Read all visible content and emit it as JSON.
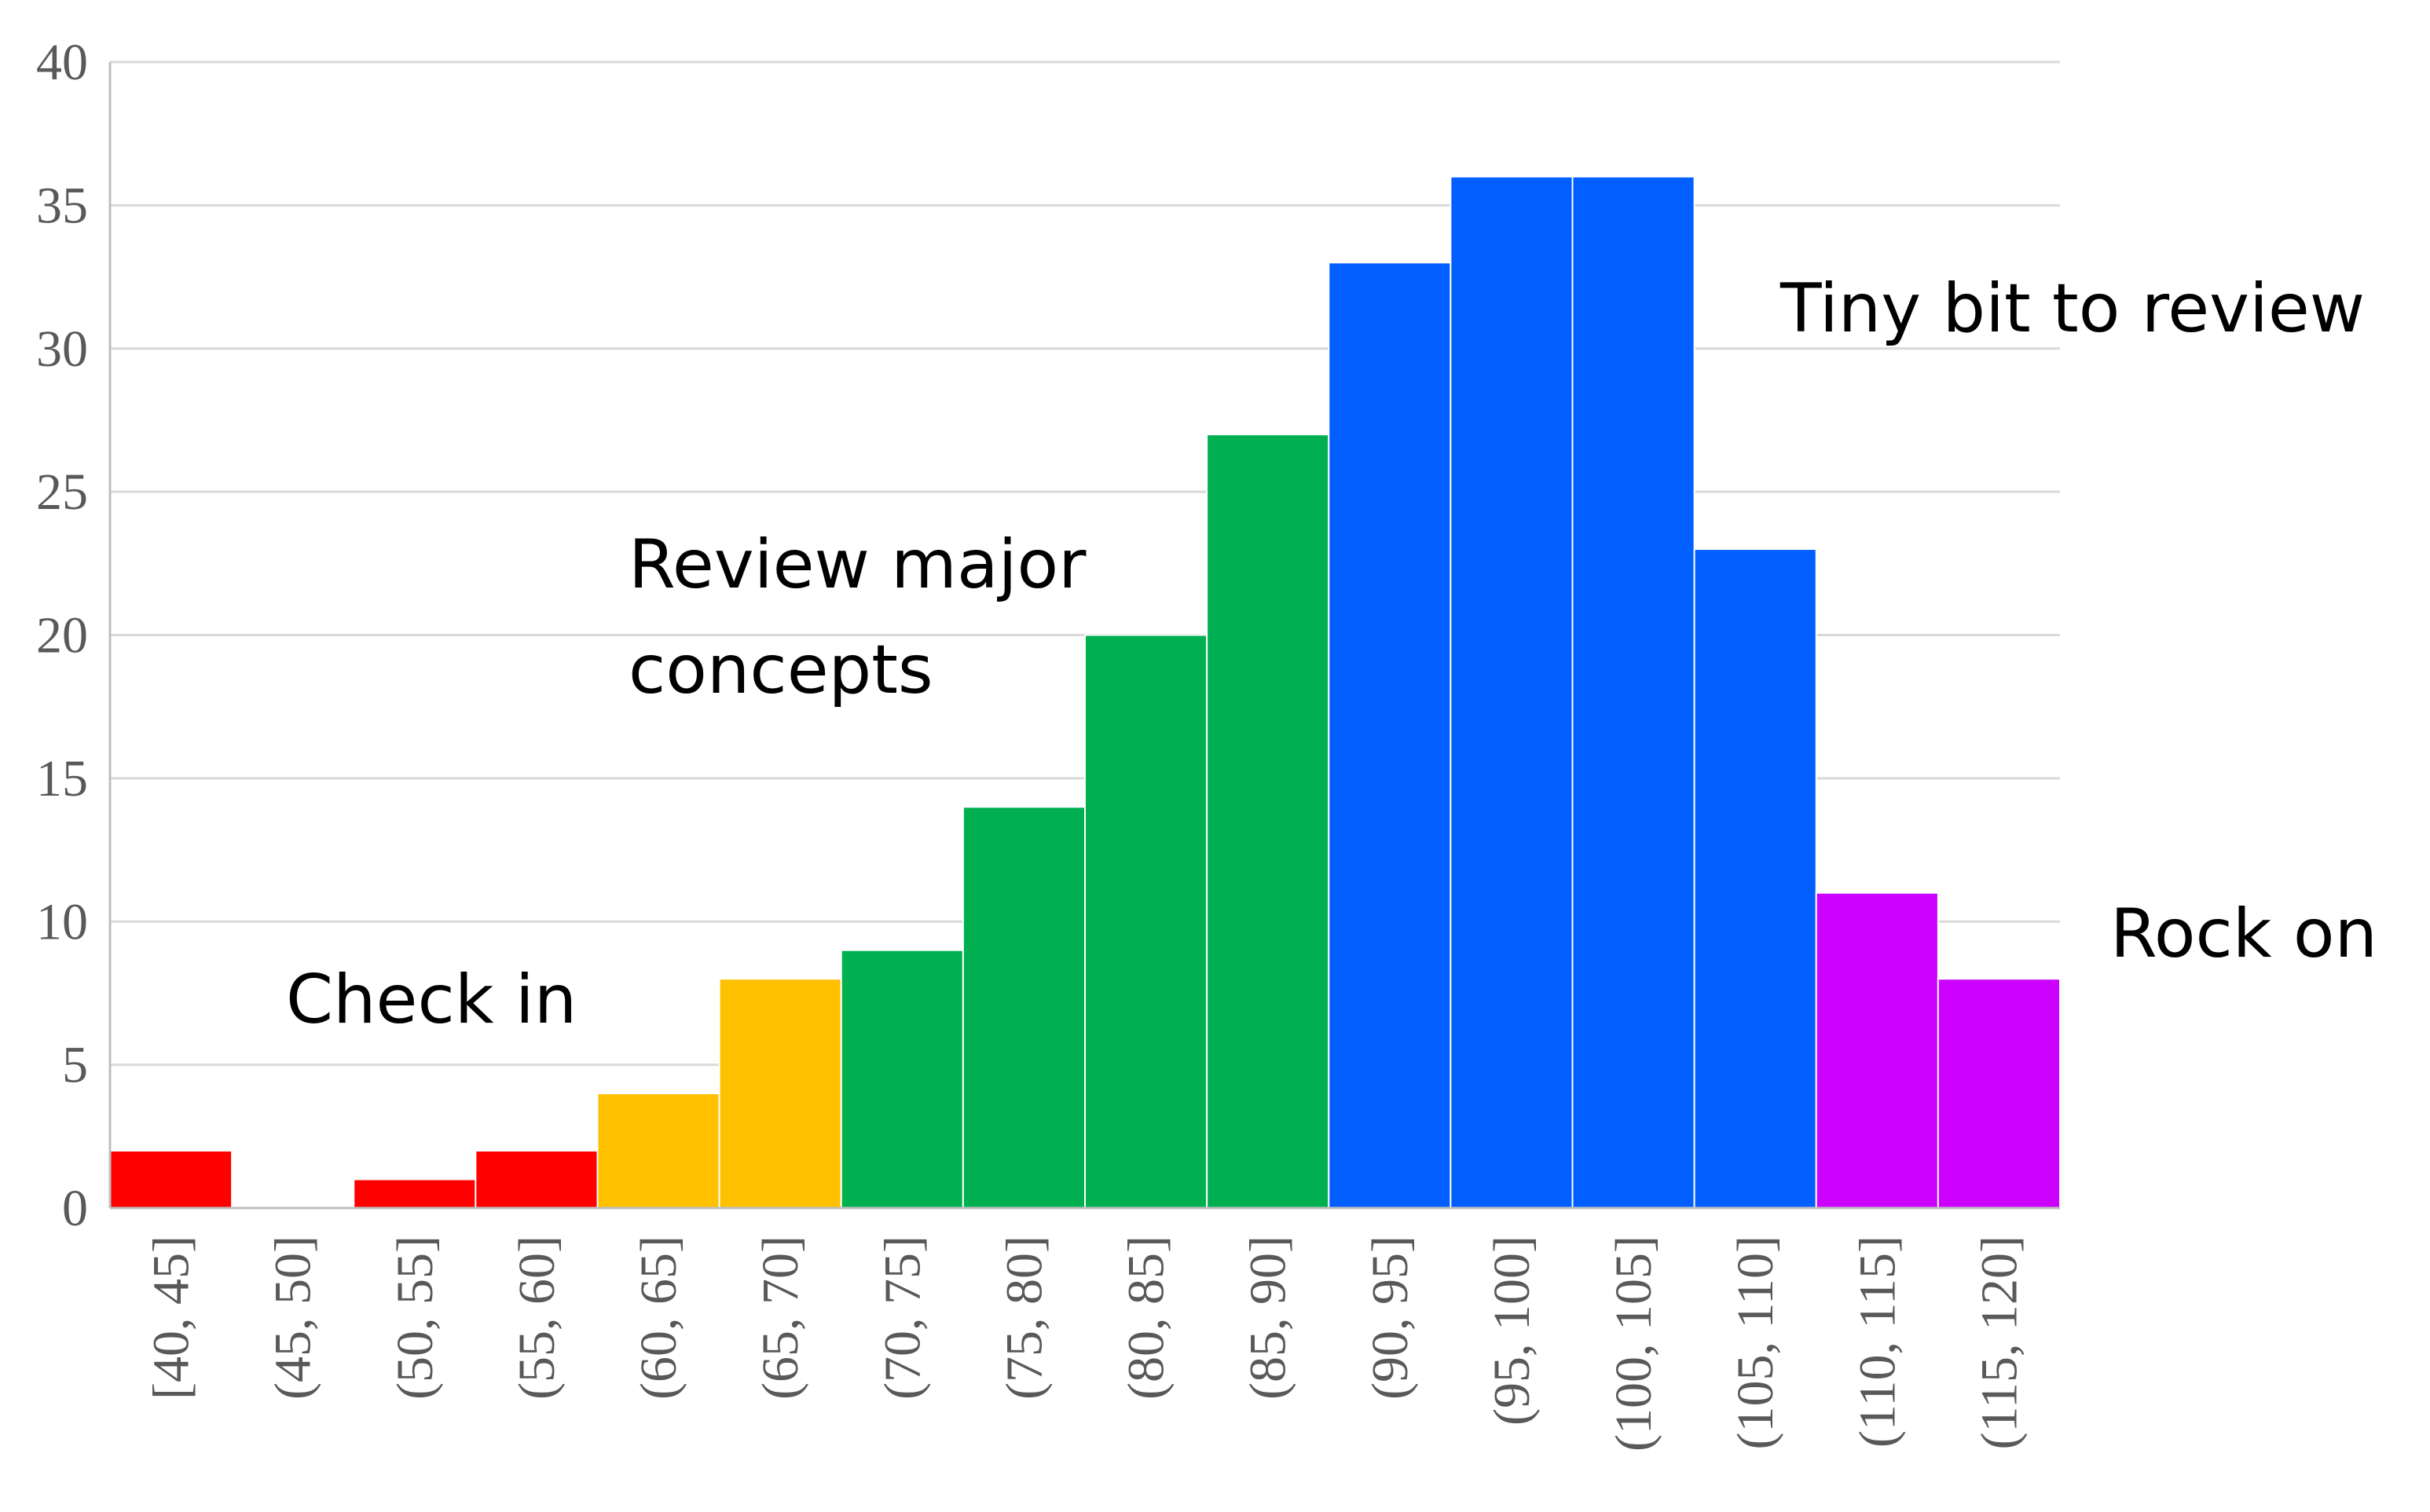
{
  "chart_data": {
    "type": "bar",
    "title": "",
    "xlabel": "",
    "ylabel": "",
    "categories": [
      "[40, 45]",
      "(45, 50]",
      "(50, 55]",
      "(55, 60]",
      "(60, 65]",
      "(65, 70]",
      "(70, 75]",
      "(75, 80]",
      "(80, 85]",
      "(85, 90]",
      "(90, 95]",
      "(95, 100]",
      "(100, 105]",
      "(105, 110]",
      "(110, 115]",
      "(115, 120]"
    ],
    "values": [
      2,
      0,
      1,
      2,
      4,
      8,
      9,
      14,
      20,
      27,
      33,
      36,
      36,
      23,
      11,
      8
    ],
    "bar_colors": [
      "#ff0000",
      "#ff0000",
      "#ff0000",
      "#ff0000",
      "#ffc000",
      "#ffc000",
      "#00b050",
      "#00b050",
      "#00b050",
      "#00b050",
      "#005ffe",
      "#005ffe",
      "#005ffe",
      "#005ffe",
      "#cc00ff",
      "#cc00ff"
    ],
    "ylim": [
      0,
      40
    ],
    "yticks": [
      0,
      5,
      10,
      15,
      20,
      25,
      30,
      35,
      40
    ],
    "grid": true,
    "legend": "none",
    "annotations": [
      {
        "lines": [
          "Check in"
        ]
      },
      {
        "lines": [
          "Review major",
          "concepts"
        ]
      },
      {
        "lines": [
          "Tiny bit to review"
        ]
      },
      {
        "lines": [
          "Rock on"
        ]
      }
    ]
  }
}
